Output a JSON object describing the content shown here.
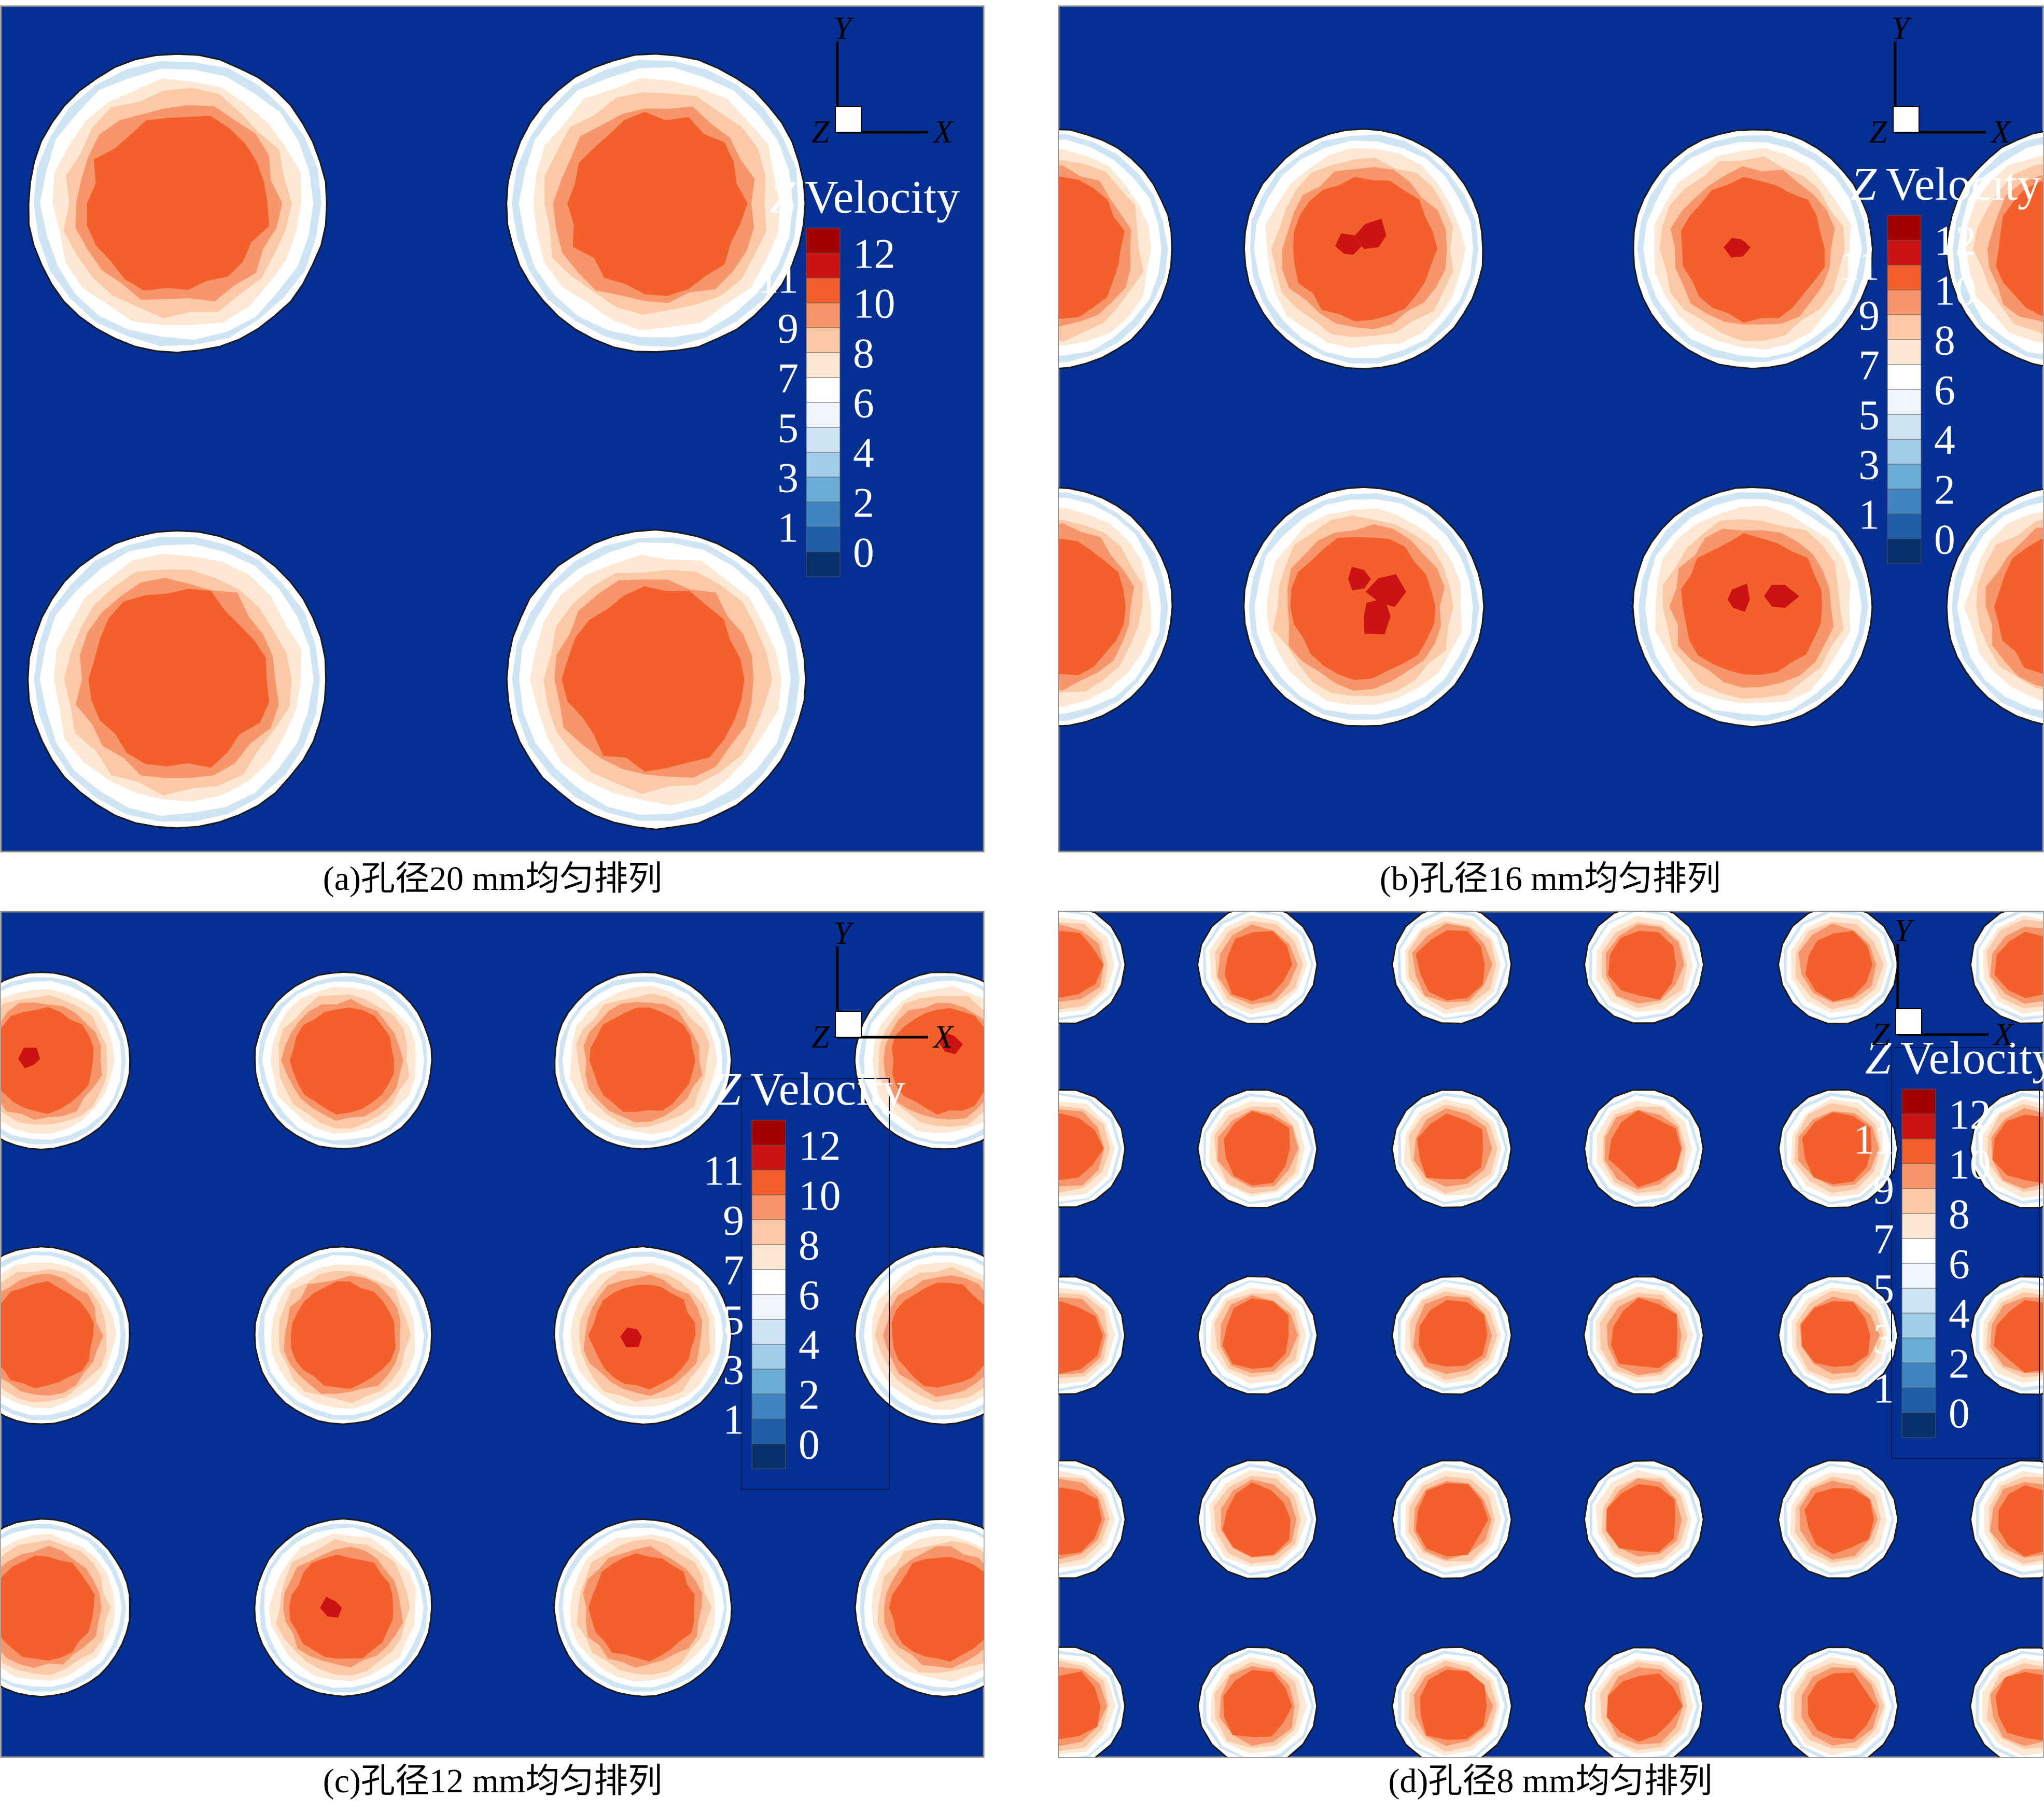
{
  "chart_data": [
    {
      "type": "heatmap",
      "caption": "(a)孔径20 mm均匀排列",
      "legend_title_var": "Z",
      "legend_title_text": "Velocity",
      "colorbar_levels": [
        0,
        1,
        2,
        3,
        4,
        5,
        6,
        7,
        8,
        9,
        10,
        11,
        12
      ],
      "axis_triad": {
        "x": "X",
        "y": "Y",
        "z": "Z"
      },
      "hole_diameter_mm": 20,
      "arrangement": "uniform",
      "legend_position": "right",
      "peak_level": 10,
      "holes": [
        {
          "row": 1,
          "col": 1,
          "core_level": 10,
          "hotspots": 0
        },
        {
          "row": 1,
          "col": 2,
          "core_level": 10,
          "hotspots": 0
        },
        {
          "row": 2,
          "col": 1,
          "core_level": 10,
          "hotspots": 0
        },
        {
          "row": 2,
          "col": 2,
          "core_level": 10,
          "hotspots": 0
        }
      ]
    },
    {
      "type": "heatmap",
      "caption": "(b)孔径16 mm均匀排列",
      "legend_title_var": "Z",
      "legend_title_text": "Velocity",
      "colorbar_levels": [
        0,
        1,
        2,
        3,
        4,
        5,
        6,
        7,
        8,
        9,
        10,
        11,
        12
      ],
      "axis_triad": {
        "x": "X",
        "y": "Y",
        "z": "Z"
      },
      "hole_diameter_mm": 16,
      "arrangement": "uniform",
      "legend_position": "right",
      "peak_level": 11,
      "holes": [
        {
          "row": 1,
          "col": 1,
          "core_level": 10,
          "hotspots": 2
        },
        {
          "row": 1,
          "col": 2,
          "core_level": 10,
          "hotspots": 1
        },
        {
          "row": 2,
          "col": 1,
          "core_level": 10,
          "hotspots": 3
        },
        {
          "row": 2,
          "col": 2,
          "core_level": 10,
          "hotspots": 2
        }
      ]
    },
    {
      "type": "heatmap",
      "caption": "(c)孔径12 mm均匀排列",
      "legend_title_var": "Z",
      "legend_title_text": "Velocity",
      "colorbar_levels": [
        0,
        1,
        2,
        3,
        4,
        5,
        6,
        7,
        8,
        9,
        10,
        11,
        12
      ],
      "axis_triad": {
        "x": "X",
        "y": "Y",
        "z": "Z"
      },
      "hole_diameter_mm": 12,
      "arrangement": "uniform",
      "legend_position": "right",
      "peak_level": 11
    },
    {
      "type": "heatmap",
      "caption": "(d)孔径8 mm均匀排列",
      "legend_title_var": "Z",
      "legend_title_text": "Velocity",
      "colorbar_levels": [
        0,
        1,
        2,
        3,
        4,
        5,
        6,
        7,
        8,
        9,
        10,
        11,
        12
      ],
      "axis_triad": {
        "x": "X",
        "y": "Y",
        "z": "Z"
      },
      "hole_diameter_mm": 8,
      "arrangement": "uniform",
      "legend_position": "right",
      "peak_level": 10
    }
  ],
  "colors": {
    "background": "#042f94",
    "scale": [
      "#08306b",
      "#1f5fa8",
      "#3f86c1",
      "#6aaed6",
      "#a2ccea",
      "#cfe5f4",
      "#f0f6fc",
      "#ffffff",
      "#fde8d4",
      "#fbc9a8",
      "#f7966b",
      "#f4602b",
      "#cc1313",
      "#a50000"
    ]
  }
}
